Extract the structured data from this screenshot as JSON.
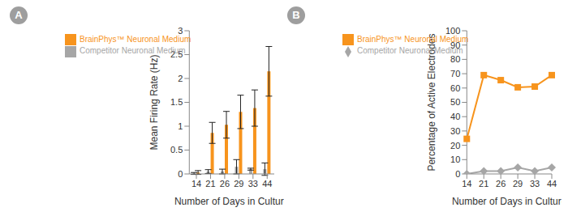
{
  "chart_data": [
    {
      "type": "bar",
      "title": "A",
      "x_label": "Number of Days in Culture",
      "y_label": "Mean Firing Rate (Hz)",
      "categories": [
        "14",
        "21",
        "26",
        "29",
        "33",
        "44"
      ],
      "series": [
        {
          "name": "Competitor Neuronal Medium",
          "color": "#a6a6a6",
          "values": [
            0.01,
            0.05,
            0.05,
            0.15,
            0.1,
            0.1
          ],
          "errors": [
            0.02,
            0.04,
            0.05,
            0.15,
            0.02,
            0.13
          ]
        },
        {
          "name": "BrainPhys™ Neuronal Medium",
          "color": "#f7941d",
          "values": [
            0.03,
            0.86,
            1.03,
            1.3,
            1.38,
            2.15
          ],
          "errors": [
            0.04,
            0.22,
            0.28,
            0.35,
            0.38,
            0.52
          ]
        }
      ],
      "ylim": [
        0,
        3
      ],
      "yticks": [
        0,
        0.5,
        1,
        1.5,
        2,
        2.5,
        3
      ],
      "grid": false,
      "legend": "upper left"
    },
    {
      "type": "line",
      "title": "B",
      "x_label": "Number of Days in Culture",
      "y_label": "Percentage of Active Electrodes",
      "categories": [
        "14",
        "21",
        "26",
        "29",
        "33",
        "44"
      ],
      "series": [
        {
          "name": "Competitor Neuronal Medium",
          "color": "#a6a6a6",
          "marker": "diamond",
          "values": [
            0,
            2,
            2,
            4.5,
            2,
            4.5
          ]
        },
        {
          "name": "BrainPhys™ Neuronal Medium",
          "color": "#f7941d",
          "marker": "square",
          "values": [
            24.5,
            69,
            65.5,
            60.5,
            61,
            69
          ]
        }
      ],
      "ylim": [
        0,
        100
      ],
      "yticks": [
        0,
        10,
        20,
        30,
        40,
        50,
        60,
        70,
        80,
        90,
        100
      ],
      "grid": false,
      "legend": "upper left"
    }
  ]
}
